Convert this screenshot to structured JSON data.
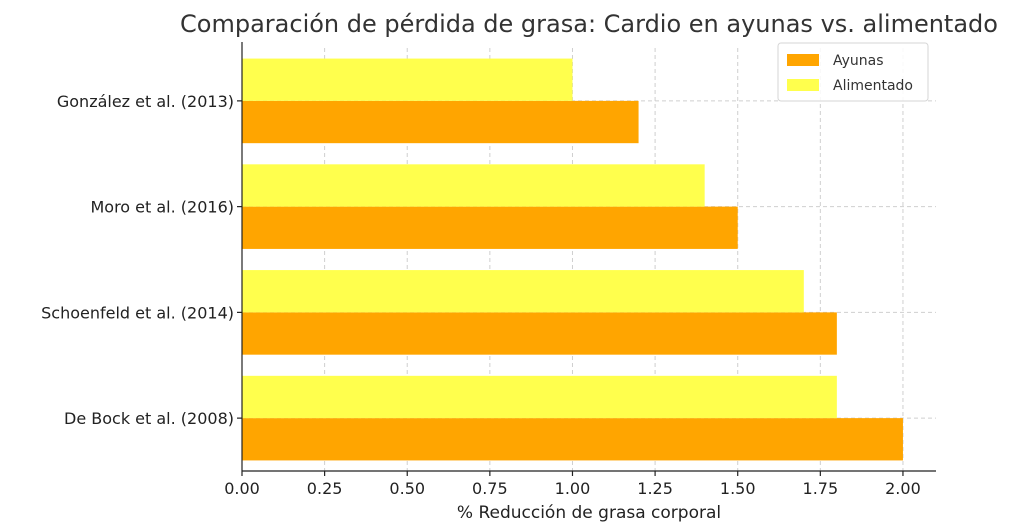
{
  "chart_data": {
    "type": "bar",
    "orientation": "horizontal",
    "title": "Comparación de pérdida de grasa: Cardio en ayunas vs. alimentado",
    "xlabel": "% Reducción de grasa corporal",
    "ylabel": "",
    "categories": [
      "De Bock et al. (2008)",
      "Schoenfeld et al. (2014)",
      "Moro et al. (2016)",
      "González et al. (2013)"
    ],
    "series": [
      {
        "name": "Ayunas",
        "color": "#FFA500",
        "values": [
          2.0,
          1.8,
          1.5,
          1.2
        ]
      },
      {
        "name": "Alimentado",
        "color": "#FFFF4D",
        "values": [
          1.8,
          1.7,
          1.4,
          1.0
        ]
      }
    ],
    "xlim": [
      0,
      2.1
    ],
    "xticks": [
      "0.00",
      "0.25",
      "0.50",
      "0.75",
      "1.00",
      "1.25",
      "1.50",
      "1.75",
      "2.00"
    ],
    "grid": true,
    "legend_position": "top-right"
  }
}
